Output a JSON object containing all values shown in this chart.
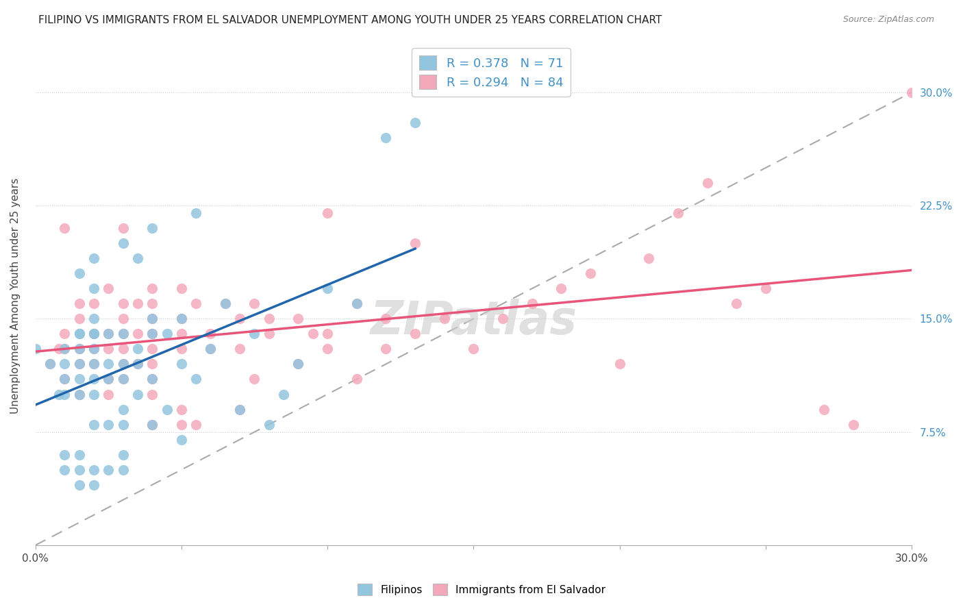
{
  "title": "FILIPINO VS IMMIGRANTS FROM EL SALVADOR UNEMPLOYMENT AMONG YOUTH UNDER 25 YEARS CORRELATION CHART",
  "source": "Source: ZipAtlas.com",
  "ylabel": "Unemployment Among Youth under 25 years",
  "ytick_labels": [
    "7.5%",
    "15.0%",
    "22.5%",
    "30.0%"
  ],
  "xlim": [
    0.0,
    0.3
  ],
  "ylim": [
    0.0,
    0.33
  ],
  "color_blue": "#92c5de",
  "color_pink": "#f4a9bb",
  "color_trendline_blue": "#2166ac",
  "color_trendline_pink": "#e8547a",
  "color_diag": "#aaaaaa",
  "watermark": "ZIPatlas",
  "blue_R": "0.378",
  "blue_N": "71",
  "pink_R": "0.294",
  "pink_N": "84",
  "blue_scatter_x": [
    0.0,
    0.005,
    0.008,
    0.01,
    0.01,
    0.01,
    0.01,
    0.01,
    0.01,
    0.015,
    0.015,
    0.015,
    0.015,
    0.015,
    0.015,
    0.015,
    0.015,
    0.015,
    0.015,
    0.02,
    0.02,
    0.02,
    0.02,
    0.02,
    0.02,
    0.02,
    0.02,
    0.02,
    0.02,
    0.02,
    0.02,
    0.025,
    0.025,
    0.025,
    0.025,
    0.025,
    0.03,
    0.03,
    0.03,
    0.03,
    0.03,
    0.03,
    0.03,
    0.03,
    0.035,
    0.035,
    0.035,
    0.035,
    0.04,
    0.04,
    0.04,
    0.04,
    0.04,
    0.045,
    0.045,
    0.05,
    0.05,
    0.05,
    0.055,
    0.055,
    0.06,
    0.065,
    0.07,
    0.075,
    0.08,
    0.085,
    0.09,
    0.1,
    0.11,
    0.12,
    0.13
  ],
  "blue_scatter_y": [
    0.13,
    0.12,
    0.1,
    0.05,
    0.06,
    0.1,
    0.11,
    0.12,
    0.13,
    0.04,
    0.05,
    0.06,
    0.1,
    0.11,
    0.12,
    0.13,
    0.14,
    0.14,
    0.18,
    0.04,
    0.05,
    0.08,
    0.1,
    0.11,
    0.12,
    0.13,
    0.14,
    0.14,
    0.15,
    0.17,
    0.19,
    0.05,
    0.08,
    0.11,
    0.12,
    0.14,
    0.05,
    0.06,
    0.08,
    0.09,
    0.11,
    0.12,
    0.14,
    0.2,
    0.1,
    0.12,
    0.13,
    0.19,
    0.08,
    0.11,
    0.14,
    0.15,
    0.21,
    0.09,
    0.14,
    0.07,
    0.12,
    0.15,
    0.11,
    0.22,
    0.13,
    0.16,
    0.09,
    0.14,
    0.08,
    0.1,
    0.12,
    0.17,
    0.16,
    0.27,
    0.28
  ],
  "pink_scatter_x": [
    0.005,
    0.008,
    0.01,
    0.01,
    0.01,
    0.01,
    0.015,
    0.015,
    0.015,
    0.015,
    0.015,
    0.02,
    0.02,
    0.02,
    0.02,
    0.025,
    0.025,
    0.025,
    0.025,
    0.025,
    0.03,
    0.03,
    0.03,
    0.03,
    0.03,
    0.03,
    0.03,
    0.035,
    0.035,
    0.035,
    0.04,
    0.04,
    0.04,
    0.04,
    0.04,
    0.04,
    0.04,
    0.04,
    0.04,
    0.05,
    0.05,
    0.05,
    0.05,
    0.05,
    0.05,
    0.055,
    0.055,
    0.06,
    0.06,
    0.065,
    0.07,
    0.07,
    0.07,
    0.075,
    0.075,
    0.08,
    0.08,
    0.09,
    0.09,
    0.095,
    0.1,
    0.1,
    0.1,
    0.11,
    0.11,
    0.12,
    0.12,
    0.13,
    0.13,
    0.14,
    0.15,
    0.16,
    0.17,
    0.18,
    0.19,
    0.2,
    0.21,
    0.22,
    0.23,
    0.24,
    0.25,
    0.27,
    0.28,
    0.3
  ],
  "pink_scatter_y": [
    0.12,
    0.13,
    0.11,
    0.13,
    0.14,
    0.21,
    0.1,
    0.12,
    0.13,
    0.15,
    0.16,
    0.12,
    0.13,
    0.14,
    0.16,
    0.1,
    0.11,
    0.13,
    0.14,
    0.17,
    0.11,
    0.12,
    0.13,
    0.14,
    0.15,
    0.16,
    0.21,
    0.12,
    0.14,
    0.16,
    0.08,
    0.1,
    0.11,
    0.12,
    0.13,
    0.14,
    0.15,
    0.16,
    0.17,
    0.08,
    0.09,
    0.13,
    0.14,
    0.15,
    0.17,
    0.08,
    0.16,
    0.13,
    0.14,
    0.16,
    0.09,
    0.13,
    0.15,
    0.11,
    0.16,
    0.14,
    0.15,
    0.12,
    0.15,
    0.14,
    0.13,
    0.14,
    0.22,
    0.11,
    0.16,
    0.13,
    0.15,
    0.14,
    0.2,
    0.15,
    0.13,
    0.15,
    0.16,
    0.17,
    0.18,
    0.12,
    0.19,
    0.22,
    0.24,
    0.16,
    0.17,
    0.09,
    0.08,
    0.3
  ]
}
